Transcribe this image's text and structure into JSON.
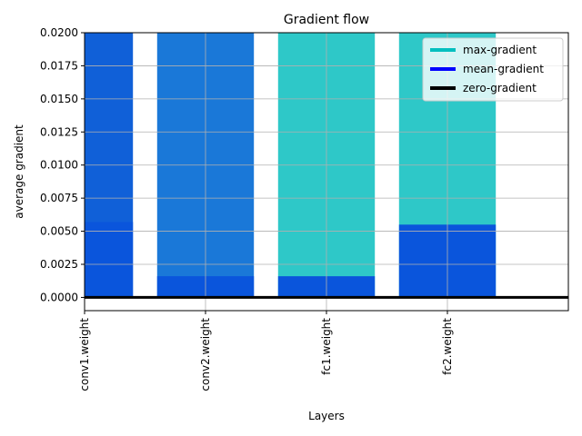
{
  "chart_data": {
    "type": "bar",
    "title": "Gradient flow",
    "x_label": "Layers",
    "y_label": "average gradient",
    "categories": [
      "conv1.weight",
      "conv2.weight",
      "fc1.weight",
      "fc2.weight"
    ],
    "xlim": [
      0,
      4
    ],
    "series": [
      {
        "name": "max-gradient",
        "color": "#00bfbf",
        "bar_colors": [
          "#1060d8",
          "#1a78d8",
          "#2ec8c8",
          "#2ec8c8"
        ],
        "values": [
          0.02,
          0.02,
          0.02,
          0.02
        ]
      },
      {
        "name": "mean-gradient",
        "color": "#0000ff",
        "bar_colors": [
          "#0a55dc",
          "#0a55dc",
          "#0a55dc",
          "#0a55dc"
        ],
        "values": [
          0.0057,
          0.0016,
          0.0016,
          0.0055
        ]
      }
    ],
    "hline": {
      "name": "zero-gradient",
      "color": "#000000",
      "value": 0
    },
    "ylim": [
      -0.001,
      0.02
    ],
    "yticks": [
      {
        "value": 0,
        "label": "0.0000"
      },
      {
        "value": 0.0025,
        "label": "0.0025"
      },
      {
        "value": 0.005,
        "label": "0.0050"
      },
      {
        "value": 0.0075,
        "label": "0.0075"
      },
      {
        "value": 0.01,
        "label": "0.0100"
      },
      {
        "value": 0.0125,
        "label": "0.0125"
      },
      {
        "value": 0.015,
        "label": "0.0150"
      },
      {
        "value": 0.0175,
        "label": "0.0175"
      },
      {
        "value": 0.02,
        "label": "0.0200"
      }
    ],
    "grid": true,
    "legend": "upper right"
  }
}
